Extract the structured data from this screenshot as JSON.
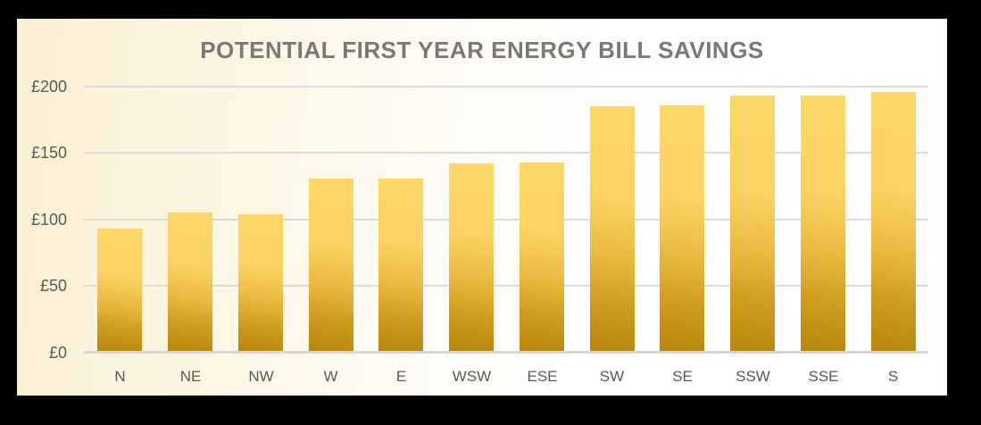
{
  "window": {
    "background_color": "#000000"
  },
  "card": {
    "background_left_color": "#FAF0D2",
    "background_right_color": "#FFFFFF"
  },
  "chart_data": {
    "type": "bar",
    "title": "POTENTIAL FIRST YEAR ENERGY BILL SAVINGS",
    "title_color": "#7B7875",
    "categories": [
      "N",
      "NE",
      "NW",
      "W",
      "E",
      "WSW",
      "ESE",
      "SW",
      "SE",
      "SSW",
      "SSE",
      "S"
    ],
    "values": [
      92,
      104,
      103,
      130,
      130,
      141,
      142,
      184,
      185,
      192,
      192,
      195
    ],
    "xlabel": "",
    "ylabel": "",
    "ylim": [
      0,
      200
    ],
    "y_ticks": [
      {
        "value": 0,
        "label": "£0"
      },
      {
        "value": 50,
        "label": "£50"
      },
      {
        "value": 100,
        "label": "£100"
      },
      {
        "value": 150,
        "label": "£150"
      },
      {
        "value": 200,
        "label": "£200"
      }
    ],
    "currency_prefix": "£",
    "grid": "horizontal",
    "legend_position": "none",
    "bar_gradient_top_color": "#FCD463",
    "bar_gradient_bottom_color": "#B8860B",
    "grid_color": "#DBDBDB",
    "tick_label_color": "#595959"
  }
}
